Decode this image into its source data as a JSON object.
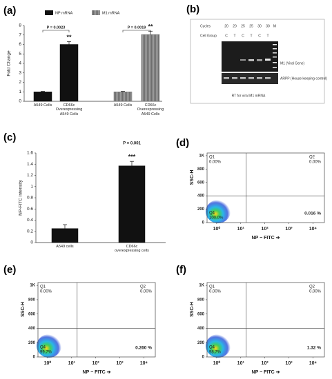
{
  "chart_data": [
    {
      "type": "bar",
      "panel_label": "(a)",
      "ylabel": "Fold Change",
      "categories": [
        "A549 Cells",
        "CD66c Overexpressing A549 Cells",
        "A549 Cells",
        "CD66c Overexpressing A549 Cells"
      ],
      "series": [
        {
          "name": "NP mRNA",
          "color": "#111111",
          "values": [
            1,
            6.0,
            null,
            null
          ],
          "errors": [
            0.05,
            0.3,
            null,
            null
          ]
        },
        {
          "name": "M1 mRNA",
          "color": "#6e6e6e",
          "values": [
            null,
            null,
            1,
            7.05
          ],
          "errors": [
            null,
            null,
            0.05,
            0.35
          ]
        }
      ],
      "significance": [
        null,
        "**",
        null,
        "**"
      ],
      "p_labels": [
        "P = 0.0023",
        "P = 0.0019"
      ],
      "ylim": [
        0,
        8
      ],
      "yticks": [
        0,
        1,
        2,
        3,
        4,
        5,
        6,
        7,
        8
      ],
      "legend": "top"
    },
    {
      "type": "bar",
      "panel_label": "(c)",
      "ylabel": "NP-FITC Intensity",
      "categories": [
        "A549 cells",
        "CD66c overexpressing cells"
      ],
      "series": [
        {
          "name": null,
          "color": "#111111",
          "values": [
            0.25,
            1.37
          ],
          "errors": [
            0.07,
            0.08
          ]
        }
      ],
      "significance": [
        null,
        "***"
      ],
      "p_labels": [
        "P = 0.001"
      ],
      "ylim": [
        0,
        1.6
      ],
      "yticks": [
        0,
        0.2,
        0.4,
        0.6,
        0.8,
        1,
        1.2,
        1.4,
        1.6
      ]
    },
    {
      "type": "scatter",
      "panel_label": "(d)",
      "xlabel": "NP − FITC ➔",
      "ylabel": "SSC-H",
      "xscale": "log",
      "xlim": [
        0.4,
        30000
      ],
      "xticks": [
        {
          "value": 1,
          "label": "10⁰"
        },
        {
          "value": 10,
          "label": "10¹"
        },
        {
          "value": 100,
          "label": "10²"
        },
        {
          "value": 1000,
          "label": "10³"
        },
        {
          "value": 10000,
          "label": "10⁴"
        }
      ],
      "ylim": [
        0,
        1040
      ],
      "yticks": [
        0,
        200,
        400,
        600,
        800,
        {
          "value": 1000,
          "label": "1K"
        }
      ],
      "gate_x": 17,
      "gate_y": 400,
      "quadrants": {
        "names": [
          "Q1",
          "Q2",
          null,
          "Q4"
        ],
        "values": [
          0,
          0,
          0.016,
          100
        ],
        "value_labels": [
          "0.00%",
          "0.00%",
          "0.016 %",
          "100.0%"
        ]
      }
    },
    {
      "type": "scatter",
      "panel_label": "(e)",
      "xlabel": "NP − FITC ➔",
      "ylabel": "SSC-H",
      "xscale": "log",
      "xlim": [
        0.4,
        30000
      ],
      "xticks": [
        {
          "value": 1,
          "label": "10⁰"
        },
        {
          "value": 10,
          "label": "10¹"
        },
        {
          "value": 100,
          "label": "10²"
        },
        {
          "value": 1000,
          "label": "10³"
        },
        {
          "value": 10000,
          "label": "10⁴"
        }
      ],
      "ylim": [
        0,
        1040
      ],
      "yticks": [
        0,
        200,
        400,
        600,
        800,
        {
          "value": 1000,
          "label": "1K"
        }
      ],
      "gate_x": 17,
      "gate_y": 400,
      "quadrants": {
        "names": [
          "Q1",
          "Q2",
          null,
          "Q4"
        ],
        "values": [
          0,
          0,
          0.26,
          99.7
        ],
        "value_labels": [
          "0.00%",
          "0.00%",
          "0.260 %",
          "99.7%"
        ]
      }
    },
    {
      "type": "scatter",
      "panel_label": "(f)",
      "xlabel": "NP − FITC ➔",
      "ylabel": "SSC-H",
      "xscale": "log",
      "xlim": [
        0.4,
        30000
      ],
      "xticks": [
        {
          "value": 1,
          "label": "10⁰"
        },
        {
          "value": 10,
          "label": "10¹"
        },
        {
          "value": 100,
          "label": "10²"
        },
        {
          "value": 1000,
          "label": "10³"
        },
        {
          "value": 10000,
          "label": "10⁴"
        }
      ],
      "ylim": [
        0,
        1040
      ],
      "yticks": [
        0,
        200,
        400,
        600,
        800,
        {
          "value": 1000,
          "label": "1K"
        }
      ],
      "gate_x": 17,
      "gate_y": 400,
      "quadrants": {
        "names": [
          "Q1",
          "Q2",
          null,
          "Q4"
        ],
        "values": [
          0,
          0,
          1.32,
          98.7
        ],
        "value_labels": [
          "0.00%",
          "0.00%",
          "1.32 %",
          "98.7%"
        ]
      }
    }
  ],
  "gel_panel": {
    "panel_label": "(b)",
    "cycles_label": "Cycles",
    "cycles": [
      20,
      20,
      25,
      25,
      30,
      30
    ],
    "marker_lane": "M",
    "cell_group_label": "Cell Group",
    "groups": [
      "C",
      "T",
      "C",
      "T",
      "C",
      "T"
    ],
    "band_labels": [
      "M1 (Viral Gene)",
      "ARPP (House keeping control)"
    ],
    "caption": "RT for viral M1 mRNA"
  }
}
